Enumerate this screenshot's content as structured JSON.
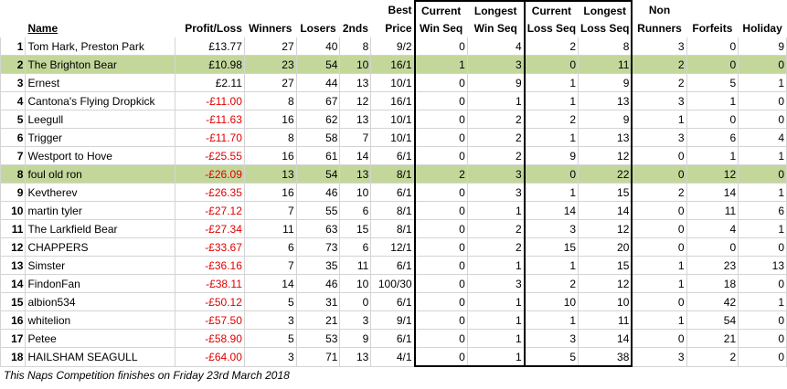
{
  "headers": {
    "name": "Name",
    "profit": "Profit/Loss",
    "winners": "Winners",
    "losers": "Losers",
    "seconds": "2nds",
    "best_price": [
      "Best",
      "Price"
    ],
    "current_win_seq": [
      "Current",
      "Win Seq"
    ],
    "longest_win_seq": [
      "Longest",
      "Win Seq"
    ],
    "current_loss_seq": [
      "Current",
      "Loss Seq"
    ],
    "longest_loss_seq": [
      "Longest",
      "Loss Seq"
    ],
    "non_runners": [
      "Non",
      "Runners"
    ],
    "forfeits": "Forfeits",
    "holiday": "Holiday"
  },
  "rows": [
    {
      "rank": "1",
      "name": "Tom Hark, Preston Park",
      "profit": "£13.77",
      "winners": "27",
      "losers": "40",
      "seconds": "8",
      "best": "9/2",
      "cws": "0",
      "lws": "4",
      "cls": "2",
      "lls": "8",
      "nr": "3",
      "forfeits": "0",
      "holiday": "9"
    },
    {
      "rank": "2",
      "name": "The Brighton Bear",
      "profit": "£10.98",
      "winners": "23",
      "losers": "54",
      "seconds": "10",
      "best": "16/1",
      "cws": "1",
      "lws": "3",
      "cls": "0",
      "lls": "11",
      "nr": "2",
      "forfeits": "0",
      "holiday": "0"
    },
    {
      "rank": "3",
      "name": "Ernest",
      "profit": "£2.11",
      "winners": "27",
      "losers": "44",
      "seconds": "13",
      "best": "10/1",
      "cws": "0",
      "lws": "9",
      "cls": "1",
      "lls": "9",
      "nr": "2",
      "forfeits": "5",
      "holiday": "1"
    },
    {
      "rank": "4",
      "name": "Cantona's Flying Dropkick",
      "profit": "-£11.00",
      "winners": "8",
      "losers": "67",
      "seconds": "12",
      "best": "16/1",
      "cws": "0",
      "lws": "1",
      "cls": "1",
      "lls": "13",
      "nr": "3",
      "forfeits": "1",
      "holiday": "0"
    },
    {
      "rank": "5",
      "name": "Leegull",
      "profit": "-£11.63",
      "winners": "16",
      "losers": "62",
      "seconds": "13",
      "best": "10/1",
      "cws": "0",
      "lws": "2",
      "cls": "2",
      "lls": "9",
      "nr": "1",
      "forfeits": "0",
      "holiday": "0"
    },
    {
      "rank": "6",
      "name": "Trigger",
      "profit": "-£11.70",
      "winners": "8",
      "losers": "58",
      "seconds": "7",
      "best": "10/1",
      "cws": "0",
      "lws": "2",
      "cls": "1",
      "lls": "13",
      "nr": "3",
      "forfeits": "6",
      "holiday": "4"
    },
    {
      "rank": "7",
      "name": "Westport to Hove",
      "profit": "-£25.55",
      "winners": "16",
      "losers": "61",
      "seconds": "14",
      "best": "6/1",
      "cws": "0",
      "lws": "2",
      "cls": "9",
      "lls": "12",
      "nr": "0",
      "forfeits": "1",
      "holiday": "1"
    },
    {
      "rank": "8",
      "name": "foul old ron",
      "profit": "-£26.09",
      "winners": "13",
      "losers": "54",
      "seconds": "13",
      "best": "8/1",
      "cws": "2",
      "lws": "3",
      "cls": "0",
      "lls": "22",
      "nr": "0",
      "forfeits": "12",
      "holiday": "0"
    },
    {
      "rank": "9",
      "name": "Kevtherev",
      "profit": "-£26.35",
      "winners": "16",
      "losers": "46",
      "seconds": "10",
      "best": "6/1",
      "cws": "0",
      "lws": "3",
      "cls": "1",
      "lls": "15",
      "nr": "2",
      "forfeits": "14",
      "holiday": "1"
    },
    {
      "rank": "10",
      "name": "martin tyler",
      "profit": "-£27.12",
      "winners": "7",
      "losers": "55",
      "seconds": "6",
      "best": "8/1",
      "cws": "0",
      "lws": "1",
      "cls": "14",
      "lls": "14",
      "nr": "0",
      "forfeits": "11",
      "holiday": "6"
    },
    {
      "rank": "11",
      "name": "The Larkfield Bear",
      "profit": "-£27.34",
      "winners": "11",
      "losers": "63",
      "seconds": "15",
      "best": "8/1",
      "cws": "0",
      "lws": "2",
      "cls": "3",
      "lls": "12",
      "nr": "0",
      "forfeits": "4",
      "holiday": "1"
    },
    {
      "rank": "12",
      "name": "CHAPPERS",
      "profit": "-£33.67",
      "winners": "6",
      "losers": "73",
      "seconds": "6",
      "best": "12/1",
      "cws": "0",
      "lws": "2",
      "cls": "15",
      "lls": "20",
      "nr": "0",
      "forfeits": "0",
      "holiday": "0"
    },
    {
      "rank": "13",
      "name": "Simster",
      "profit": "-£36.16",
      "winners": "7",
      "losers": "35",
      "seconds": "11",
      "best": "6/1",
      "cws": "0",
      "lws": "1",
      "cls": "1",
      "lls": "15",
      "nr": "1",
      "forfeits": "23",
      "holiday": "13"
    },
    {
      "rank": "14",
      "name": "FindonFan",
      "profit": "-£38.11",
      "winners": "14",
      "losers": "46",
      "seconds": "10",
      "best": "100/30",
      "cws": "0",
      "lws": "3",
      "cls": "2",
      "lls": "12",
      "nr": "1",
      "forfeits": "18",
      "holiday": "0"
    },
    {
      "rank": "15",
      "name": "albion534",
      "profit": "-£50.12",
      "winners": "5",
      "losers": "31",
      "seconds": "0",
      "best": "6/1",
      "cws": "0",
      "lws": "1",
      "cls": "10",
      "lls": "10",
      "nr": "0",
      "forfeits": "42",
      "holiday": "1"
    },
    {
      "rank": "16",
      "name": "whitelion",
      "profit": "-£57.50",
      "winners": "3",
      "losers": "21",
      "seconds": "3",
      "best": "9/1",
      "cws": "0",
      "lws": "1",
      "cls": "1",
      "lls": "11",
      "nr": "1",
      "forfeits": "54",
      "holiday": "0"
    },
    {
      "rank": "17",
      "name": "Petee",
      "profit": "-£58.90",
      "winners": "5",
      "losers": "53",
      "seconds": "9",
      "best": "6/1",
      "cws": "0",
      "lws": "1",
      "cls": "3",
      "lls": "14",
      "nr": "0",
      "forfeits": "21",
      "holiday": "0"
    },
    {
      "rank": "18",
      "name": "HAILSHAM SEAGULL",
      "profit": "-£64.00",
      "winners": "3",
      "losers": "71",
      "seconds": "13",
      "best": "4/1",
      "cws": "0",
      "lws": "1",
      "cls": "5",
      "lls": "38",
      "nr": "3",
      "forfeits": "2",
      "holiday": "0"
    }
  ],
  "highlighted_ranks": [
    "2",
    "8"
  ],
  "colors": {
    "highlight": "#c4d79b",
    "negative": "#e00000"
  },
  "footer": "This Naps Competition finishes on Friday 23rd March 2018"
}
